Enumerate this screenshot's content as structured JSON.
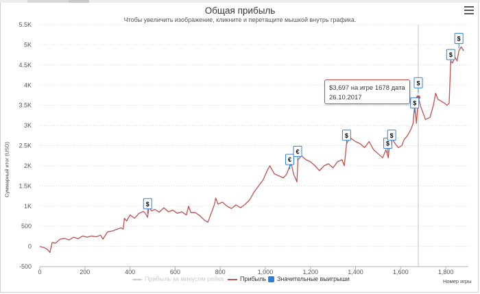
{
  "header": {
    "title": "Общая прибыль",
    "subtitle": "Чтобы увеличить изображение, кликните и перетащите мышкой внутрь графика."
  },
  "icons": {
    "menu": "hamburger-menu-icon"
  },
  "tooltip": {
    "line1": "$3,697 на игре 1678 дата",
    "line2": "26.10.2017"
  },
  "legend": {
    "items": [
      {
        "label": "Прибыль за минусом рейка",
        "color": "#cccccc",
        "kind": "line",
        "hidden": true
      },
      {
        "label": "Прибыль",
        "color": "#c0504d",
        "kind": "line",
        "hidden": false
      },
      {
        "label": "Значительные выигрыши",
        "color": "#2f7ed8",
        "kind": "box",
        "hidden": false
      }
    ]
  },
  "chart_data": {
    "type": "line",
    "title": "Общая прибыль",
    "subtitle": "Чтобы увеличить изображение, кликните и перетащите мышкой внутрь графика.",
    "xlabel": "Номер игры",
    "ylabel": "Суммарный итог (USD)",
    "xlim": [
      0,
      1900
    ],
    "ylim": [
      -500,
      5500
    ],
    "x_ticks": [
      0,
      200,
      400,
      600,
      800,
      1000,
      1200,
      1400,
      1600,
      1800
    ],
    "x_tick_labels": [
      "0",
      "200",
      "400",
      "600",
      "800",
      "1,000",
      "1,200",
      "1,400",
      "1,600",
      "1,800"
    ],
    "y_ticks": [
      -500,
      0,
      500,
      1000,
      1500,
      2000,
      2500,
      3000,
      3500,
      4000,
      4500,
      5000,
      5500
    ],
    "y_tick_labels": [
      "-500",
      "0",
      "500",
      "1K",
      "1.5K",
      "2K",
      "2.5K",
      "3K",
      "3.5K",
      "4K",
      "4.5K",
      "5K",
      "5.5K"
    ],
    "grid": "horizontal",
    "legend_position": "bottom-center",
    "series": [
      {
        "name": "Прибыль",
        "color": "#c0504d",
        "points": [
          [
            0,
            0
          ],
          [
            20,
            -30
          ],
          [
            35,
            -80
          ],
          [
            45,
            -150
          ],
          [
            55,
            100
          ],
          [
            70,
            80
          ],
          [
            90,
            180
          ],
          [
            110,
            200
          ],
          [
            130,
            160
          ],
          [
            150,
            230
          ],
          [
            170,
            190
          ],
          [
            190,
            260
          ],
          [
            210,
            230
          ],
          [
            230,
            260
          ],
          [
            250,
            240
          ],
          [
            270,
            280
          ],
          [
            280,
            180
          ],
          [
            300,
            360
          ],
          [
            320,
            380
          ],
          [
            340,
            420
          ],
          [
            360,
            460
          ],
          [
            370,
            430
          ],
          [
            375,
            700
          ],
          [
            385,
            630
          ],
          [
            400,
            780
          ],
          [
            420,
            700
          ],
          [
            440,
            820
          ],
          [
            460,
            870
          ],
          [
            470,
            800
          ],
          [
            478,
            720
          ],
          [
            485,
            1000
          ],
          [
            495,
            880
          ],
          [
            510,
            920
          ],
          [
            530,
            850
          ],
          [
            550,
            960
          ],
          [
            570,
            860
          ],
          [
            590,
            900
          ],
          [
            610,
            820
          ],
          [
            630,
            860
          ],
          [
            650,
            780
          ],
          [
            660,
            1000
          ],
          [
            670,
            840
          ],
          [
            690,
            840
          ],
          [
            710,
            760
          ],
          [
            730,
            650
          ],
          [
            745,
            600
          ],
          [
            760,
            820
          ],
          [
            775,
            1050
          ],
          [
            780,
            1200
          ],
          [
            790,
            1050
          ],
          [
            810,
            1100
          ],
          [
            830,
            1000
          ],
          [
            850,
            940
          ],
          [
            870,
            1030
          ],
          [
            890,
            960
          ],
          [
            910,
            1040
          ],
          [
            930,
            1150
          ],
          [
            950,
            1350
          ],
          [
            970,
            1500
          ],
          [
            990,
            1650
          ],
          [
            1010,
            1900
          ],
          [
            1020,
            2000
          ],
          [
            1040,
            1800
          ],
          [
            1060,
            1750
          ],
          [
            1080,
            1700
          ],
          [
            1095,
            1800
          ],
          [
            1105,
            1950
          ],
          [
            1115,
            2050
          ],
          [
            1125,
            1800
          ],
          [
            1140,
            1600
          ],
          [
            1145,
            2150
          ],
          [
            1160,
            2250
          ],
          [
            1180,
            2150
          ],
          [
            1200,
            2100
          ],
          [
            1220,
            2000
          ],
          [
            1240,
            1880
          ],
          [
            1260,
            2000
          ],
          [
            1280,
            2050
          ],
          [
            1300,
            1950
          ],
          [
            1320,
            2100
          ],
          [
            1340,
            2150
          ],
          [
            1350,
            2000
          ],
          [
            1360,
            2550
          ],
          [
            1375,
            2700
          ],
          [
            1400,
            2600
          ],
          [
            1420,
            2550
          ],
          [
            1440,
            2450
          ],
          [
            1460,
            2600
          ],
          [
            1480,
            2400
          ],
          [
            1500,
            2300
          ],
          [
            1520,
            2200
          ],
          [
            1535,
            2400
          ],
          [
            1545,
            2200
          ],
          [
            1555,
            2750
          ],
          [
            1575,
            2550
          ],
          [
            1590,
            2450
          ],
          [
            1605,
            2500
          ],
          [
            1615,
            2650
          ],
          [
            1630,
            2750
          ],
          [
            1645,
            2900
          ],
          [
            1655,
            3050
          ],
          [
            1662,
            3500
          ],
          [
            1670,
            3050
          ],
          [
            1678,
            3697
          ],
          [
            1690,
            3450
          ],
          [
            1700,
            3300
          ],
          [
            1710,
            3150
          ],
          [
            1730,
            3200
          ],
          [
            1745,
            3500
          ],
          [
            1755,
            3800
          ],
          [
            1765,
            3650
          ],
          [
            1780,
            3600
          ],
          [
            1795,
            3550
          ],
          [
            1805,
            3500
          ],
          [
            1815,
            3550
          ],
          [
            1822,
            4600
          ],
          [
            1830,
            4550
          ],
          [
            1840,
            4700
          ],
          [
            1850,
            4600
          ],
          [
            1858,
            4850
          ],
          [
            1868,
            4950
          ],
          [
            1880,
            4850
          ]
        ]
      }
    ],
    "markers": [
      {
        "x": 478,
        "y": 1050,
        "label": "$"
      },
      {
        "x": 1108,
        "y": 2150,
        "label": "€"
      },
      {
        "x": 1143,
        "y": 2350,
        "label": "€"
      },
      {
        "x": 1360,
        "y": 2750,
        "label": "$"
      },
      {
        "x": 1543,
        "y": 2550,
        "label": "$"
      },
      {
        "x": 1560,
        "y": 2750,
        "label": "$"
      },
      {
        "x": 1662,
        "y": 3550,
        "label": "$"
      },
      {
        "x": 1678,
        "y": 4050,
        "label": "$"
      },
      {
        "x": 1822,
        "y": 4750,
        "label": "$"
      },
      {
        "x": 1858,
        "y": 5150,
        "label": "$"
      }
    ],
    "crosshair_x": 1678,
    "highlight_point": {
      "x": 1678,
      "y": 3697
    }
  }
}
